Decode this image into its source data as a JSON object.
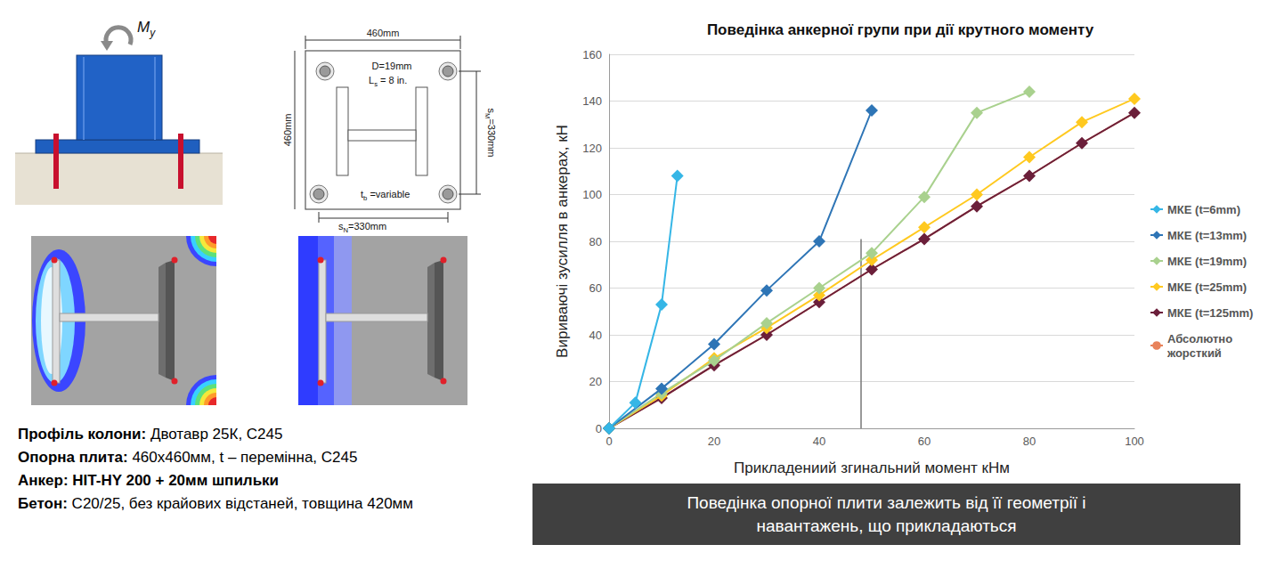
{
  "chart_data": {
    "type": "line",
    "title": "Поведінка анкерної групи при дії крутного моменту",
    "x_label": "Прикладениий згинальний момент кНм",
    "y_label": "Вириваючі зусилля в анкерах, кН",
    "xlim": [
      0,
      100
    ],
    "xticks": [
      0,
      20,
      40,
      60,
      80,
      100
    ],
    "ylim": [
      0,
      160
    ],
    "yticks": [
      0,
      20,
      40,
      60,
      80,
      100,
      120,
      140,
      160
    ],
    "grid": "y",
    "legend": "right",
    "reference_line": {
      "x": 48,
      "y_from": 0,
      "y_to": 81
    },
    "series": [
      {
        "name": "МКЕ (t=6mm)",
        "color": "#35b6e6",
        "marker": "diamond",
        "line_style": "solid",
        "x": [
          0,
          5,
          10,
          13
        ],
        "values": [
          0,
          11,
          53,
          108
        ]
      },
      {
        "name": "МКЕ (t=13mm)",
        "color": "#2e75b6",
        "marker": "diamond",
        "line_style": "solid",
        "x": [
          0,
          10,
          20,
          30,
          40,
          50
        ],
        "values": [
          0,
          17,
          36,
          59,
          80,
          136
        ]
      },
      {
        "name": "МКЕ (t=19mm)",
        "color": "#a9d18e",
        "marker": "diamond",
        "line_style": "solid",
        "x": [
          0,
          10,
          20,
          30,
          40,
          50,
          60,
          70,
          80
        ],
        "values": [
          0,
          15,
          29,
          45,
          60,
          75,
          99,
          135,
          144
        ]
      },
      {
        "name": "МКЕ (t=25mm)",
        "color": "#ffc91f",
        "marker": "diamond",
        "line_style": "solid",
        "x": [
          0,
          10,
          20,
          30,
          40,
          50,
          60,
          70,
          80,
          90,
          100
        ],
        "values": [
          0,
          14,
          30,
          43,
          57,
          72,
          86,
          100,
          116,
          131,
          141
        ]
      },
      {
        "name": "МКЕ (t=125mm)",
        "color": "#6b1f3a",
        "marker": "diamond",
        "line_style": "solid",
        "x": [
          0,
          10,
          20,
          30,
          40,
          50,
          60,
          70,
          80,
          90,
          100
        ],
        "values": [
          0,
          13,
          27,
          40,
          54,
          68,
          81,
          95,
          108,
          122,
          135
        ]
      },
      {
        "name": "Абсолютно жорсткий",
        "color": "#e8825a",
        "marker": "circle",
        "line_style": "solid",
        "x": [
          0,
          10,
          20,
          30,
          40,
          50,
          60,
          70,
          80,
          90,
          100
        ],
        "values": [
          0,
          13,
          27,
          40,
          54,
          68,
          81,
          95,
          108,
          122,
          135
        ]
      }
    ]
  },
  "caption": "Поведінка опорної плити залежить від її геометрії і навантажень, що прикладаються",
  "left_panel": {
    "moment_label": {
      "main": "M",
      "sub": "y"
    },
    "plate_plan": {
      "width_label": "460mm",
      "height_label": "460mm",
      "diameter_label": "D=19mm",
      "length_label": {
        "main": "L",
        "sub": "s",
        "rest": " = 8 in."
      },
      "thickness_label": {
        "main": "t",
        "sub": "b",
        "rest": " =variable"
      },
      "spacing_m_label": {
        "main": "s",
        "sub": "M",
        "rest": "=330mm"
      },
      "spacing_n_label": {
        "main": "s",
        "sub": "N",
        "rest": "=330mm"
      }
    },
    "specs": [
      {
        "label": "Профіль колони:",
        "value": "Двотавр 25К, С245",
        "bold_value": false
      },
      {
        "label": "Опорна плита:",
        "value": "460x460мм, t – перемінна, С245",
        "bold_value": false
      },
      {
        "label": "Анкер:",
        "value": "HIT-HY 200 + 20мм шпильки",
        "bold_value": true
      },
      {
        "label": "Бетон:",
        "value": "С20/25, без крайових відстаней, товщина 420мм",
        "bold_value": false
      }
    ]
  }
}
